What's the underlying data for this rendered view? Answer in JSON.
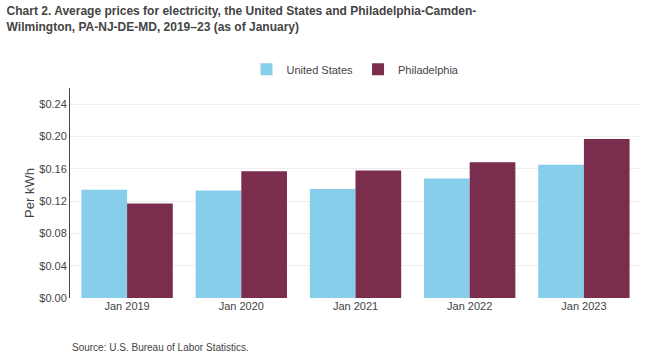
{
  "chart_data": {
    "type": "bar",
    "title": "Chart 2. Average prices for electricity, the United States and Philadelphia-Camden-\nWilmington, PA-NJ-DE-MD, 2019–23 (as of January)",
    "ylabel": "Per kWh",
    "source": "Source: U.S. Bureau of Labor Statistics.",
    "categories": [
      "Jan 2019",
      "Jan 2020",
      "Jan 2021",
      "Jan 2022",
      "Jan 2023"
    ],
    "series": [
      {
        "name": "United States",
        "color": "#87CEEB",
        "values": [
          0.134,
          0.133,
          0.135,
          0.148,
          0.165
        ]
      },
      {
        "name": "Philadelphia",
        "color": "#7B2D4E",
        "values": [
          0.117,
          0.157,
          0.158,
          0.168,
          0.197
        ]
      }
    ],
    "ylim": [
      0,
      0.26
    ],
    "yticks": [
      {
        "value": 0.0,
        "label": "$0.00"
      },
      {
        "value": 0.04,
        "label": "$0.04"
      },
      {
        "value": 0.08,
        "label": "$0.08"
      },
      {
        "value": 0.12,
        "label": "$0.12"
      },
      {
        "value": 0.16,
        "label": "$0.16"
      },
      {
        "value": 0.2,
        "label": "$0.20"
      },
      {
        "value": 0.24,
        "label": "$0.24"
      }
    ],
    "grid": true,
    "legend": "top"
  }
}
